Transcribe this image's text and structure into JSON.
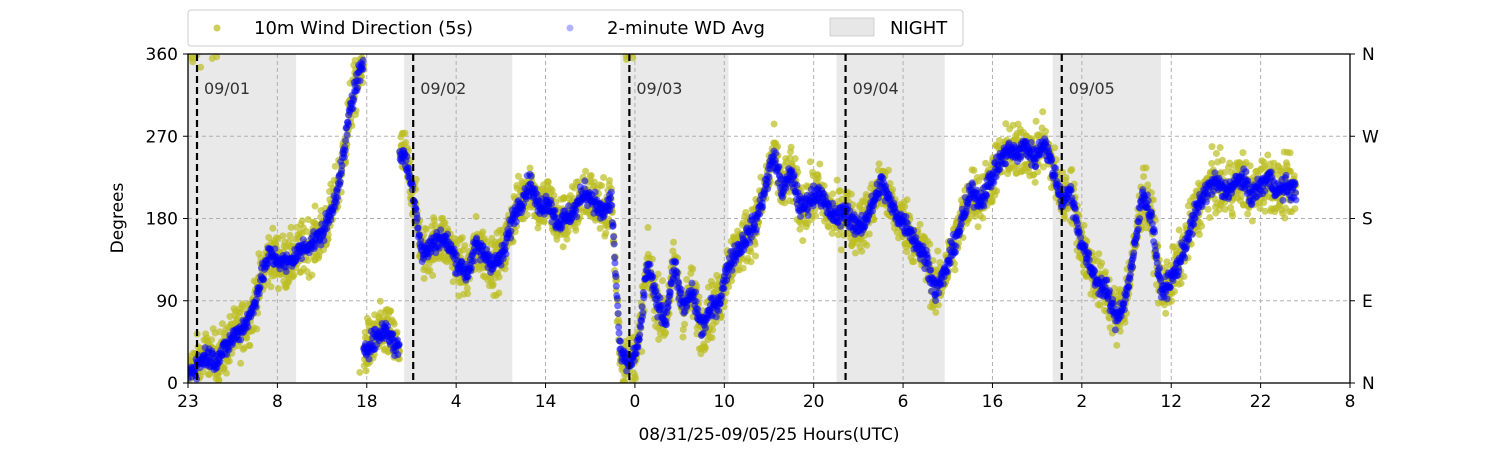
{
  "chart_data": {
    "type": "scatter",
    "title": "",
    "xlabel": "08/31/25-09/05/25  Hours(UTC)",
    "ylabel": "Degrees",
    "x_range_hours": [
      0,
      129
    ],
    "x_tick_labels": [
      "23",
      "8",
      "18",
      "4",
      "14",
      "0",
      "10",
      "20",
      "6",
      "16",
      "2",
      "12",
      "22",
      "8"
    ],
    "ylim": [
      0,
      360
    ],
    "y_ticks": [
      0,
      90,
      180,
      270,
      360
    ],
    "y_right_tick_labels": [
      "N",
      "E",
      "S",
      "W",
      "N"
    ],
    "grid": true,
    "legend_placement": "top-left, above plot",
    "night_label": "NIGHT",
    "night_bands_hours": [
      [
        0,
        12
      ],
      [
        24,
        36
      ],
      [
        48,
        60
      ],
      [
        72,
        84
      ],
      [
        96,
        108
      ]
    ],
    "day_markers": [
      {
        "hour": 1,
        "label": "09/01"
      },
      {
        "hour": 25,
        "label": "09/02"
      },
      {
        "hour": 49,
        "label": "09/03"
      },
      {
        "hour": 73,
        "label": "09/04"
      },
      {
        "hour": 97,
        "label": "09/05"
      }
    ],
    "series": [
      {
        "name": "10m Wind Direction (5s)",
        "color": "#bcbd22",
        "style": "scatter-dense"
      },
      {
        "name": "2-minute WD Avg",
        "color": "#0000ff",
        "style": "scatter-dense",
        "trace_hours_degrees": [
          [
            0,
            10
          ],
          [
            1,
            20
          ],
          [
            2,
            30
          ],
          [
            3,
            25
          ],
          [
            4,
            35
          ],
          [
            5,
            50
          ],
          [
            6,
            60
          ],
          [
            7,
            75
          ],
          [
            8,
            110
          ],
          [
            9,
            140
          ],
          [
            10,
            135
          ],
          [
            11,
            130
          ],
          [
            12,
            140
          ],
          [
            13,
            150
          ],
          [
            14,
            155
          ],
          [
            15,
            165
          ],
          [
            16,
            190
          ],
          [
            17,
            230
          ],
          [
            18,
            300
          ],
          [
            19,
            340
          ],
          [
            20,
            40
          ],
          [
            21,
            50
          ],
          [
            22,
            60
          ],
          [
            23,
            40
          ],
          [
            24,
            250
          ],
          [
            25,
            210
          ],
          [
            26,
            140
          ],
          [
            27,
            150
          ],
          [
            28,
            160
          ],
          [
            29,
            150
          ],
          [
            30,
            130
          ],
          [
            31,
            120
          ],
          [
            32,
            150
          ],
          [
            33,
            140
          ],
          [
            34,
            130
          ],
          [
            35,
            140
          ],
          [
            36,
            180
          ],
          [
            37,
            200
          ],
          [
            38,
            220
          ],
          [
            39,
            190
          ],
          [
            40,
            200
          ],
          [
            41,
            175
          ],
          [
            42,
            180
          ],
          [
            43,
            190
          ],
          [
            44,
            210
          ],
          [
            45,
            200
          ],
          [
            46,
            185
          ],
          [
            47,
            200
          ],
          [
            48,
            30
          ],
          [
            49,
            20
          ],
          [
            50,
            40
          ],
          [
            51,
            130
          ],
          [
            52,
            90
          ],
          [
            53,
            70
          ],
          [
            54,
            130
          ],
          [
            55,
            80
          ],
          [
            56,
            100
          ],
          [
            57,
            60
          ],
          [
            58,
            80
          ],
          [
            59,
            90
          ],
          [
            60,
            130
          ],
          [
            61,
            145
          ],
          [
            62,
            160
          ],
          [
            63,
            175
          ],
          [
            64,
            210
          ],
          [
            65,
            250
          ],
          [
            66,
            210
          ],
          [
            67,
            230
          ],
          [
            68,
            190
          ],
          [
            69,
            200
          ],
          [
            70,
            210
          ],
          [
            71,
            190
          ],
          [
            72,
            180
          ],
          [
            73,
            190
          ],
          [
            74,
            170
          ],
          [
            75,
            175
          ],
          [
            76,
            195
          ],
          [
            77,
            220
          ],
          [
            78,
            195
          ],
          [
            79,
            180
          ],
          [
            80,
            170
          ],
          [
            81,
            150
          ],
          [
            82,
            135
          ],
          [
            83,
            100
          ],
          [
            84,
            120
          ],
          [
            85,
            150
          ],
          [
            86,
            180
          ],
          [
            87,
            210
          ],
          [
            88,
            200
          ],
          [
            89,
            220
          ],
          [
            90,
            240
          ],
          [
            91,
            255
          ],
          [
            92,
            250
          ],
          [
            93,
            260
          ],
          [
            94,
            245
          ],
          [
            95,
            265
          ],
          [
            96,
            235
          ],
          [
            97,
            200
          ],
          [
            98,
            210
          ],
          [
            99,
            160
          ],
          [
            100,
            130
          ],
          [
            101,
            110
          ],
          [
            102,
            100
          ],
          [
            103,
            70
          ],
          [
            104,
            90
          ],
          [
            105,
            140
          ],
          [
            106,
            210
          ],
          [
            107,
            180
          ],
          [
            108,
            100
          ],
          [
            109,
            110
          ],
          [
            110,
            130
          ],
          [
            111,
            160
          ],
          [
            112,
            190
          ],
          [
            113,
            210
          ],
          [
            114,
            220
          ],
          [
            115,
            210
          ],
          [
            116,
            215
          ],
          [
            117,
            225
          ],
          [
            118,
            205
          ],
          [
            119,
            215
          ],
          [
            120,
            225
          ],
          [
            121,
            210
          ],
          [
            122,
            215
          ],
          [
            123,
            210
          ]
        ]
      }
    ]
  }
}
